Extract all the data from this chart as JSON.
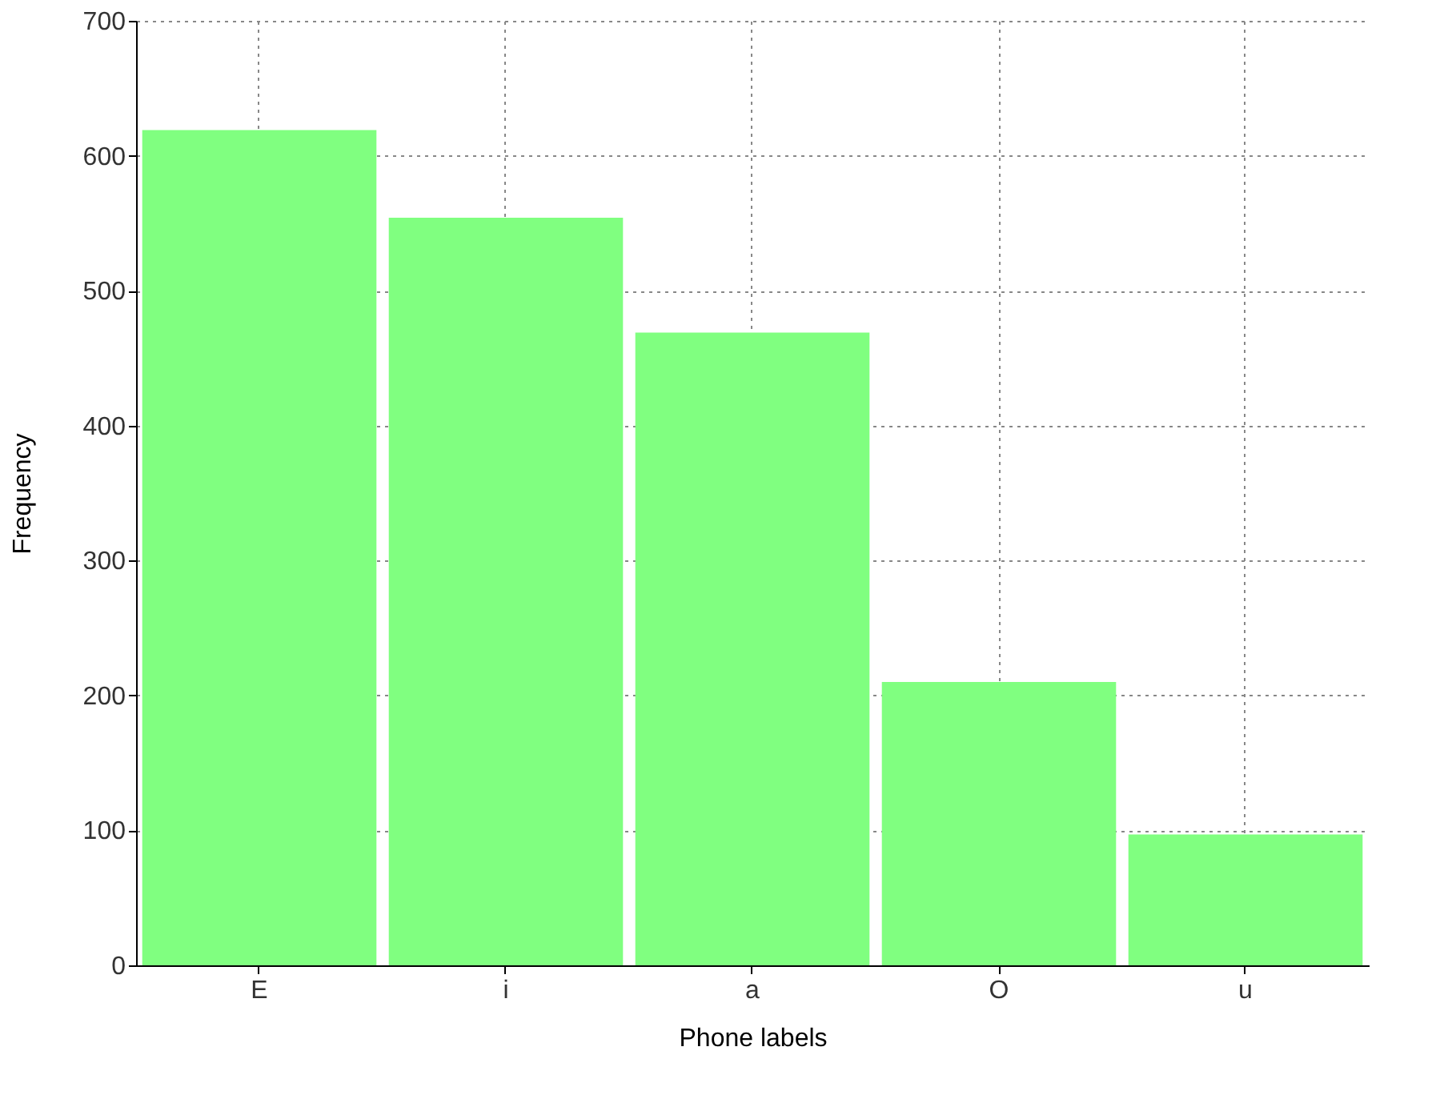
{
  "chart_data": {
    "type": "bar",
    "xlabel": "Phone labels",
    "ylabel": "Frequency",
    "categories": [
      "E",
      "i",
      "a",
      "O",
      "u"
    ],
    "values": [
      619,
      554,
      469,
      210,
      97
    ],
    "color": "#80ff80",
    "ylim": [
      0,
      700
    ],
    "yticks": [
      0,
      100,
      200,
      300,
      400,
      500,
      600,
      700
    ],
    "grid": true
  }
}
